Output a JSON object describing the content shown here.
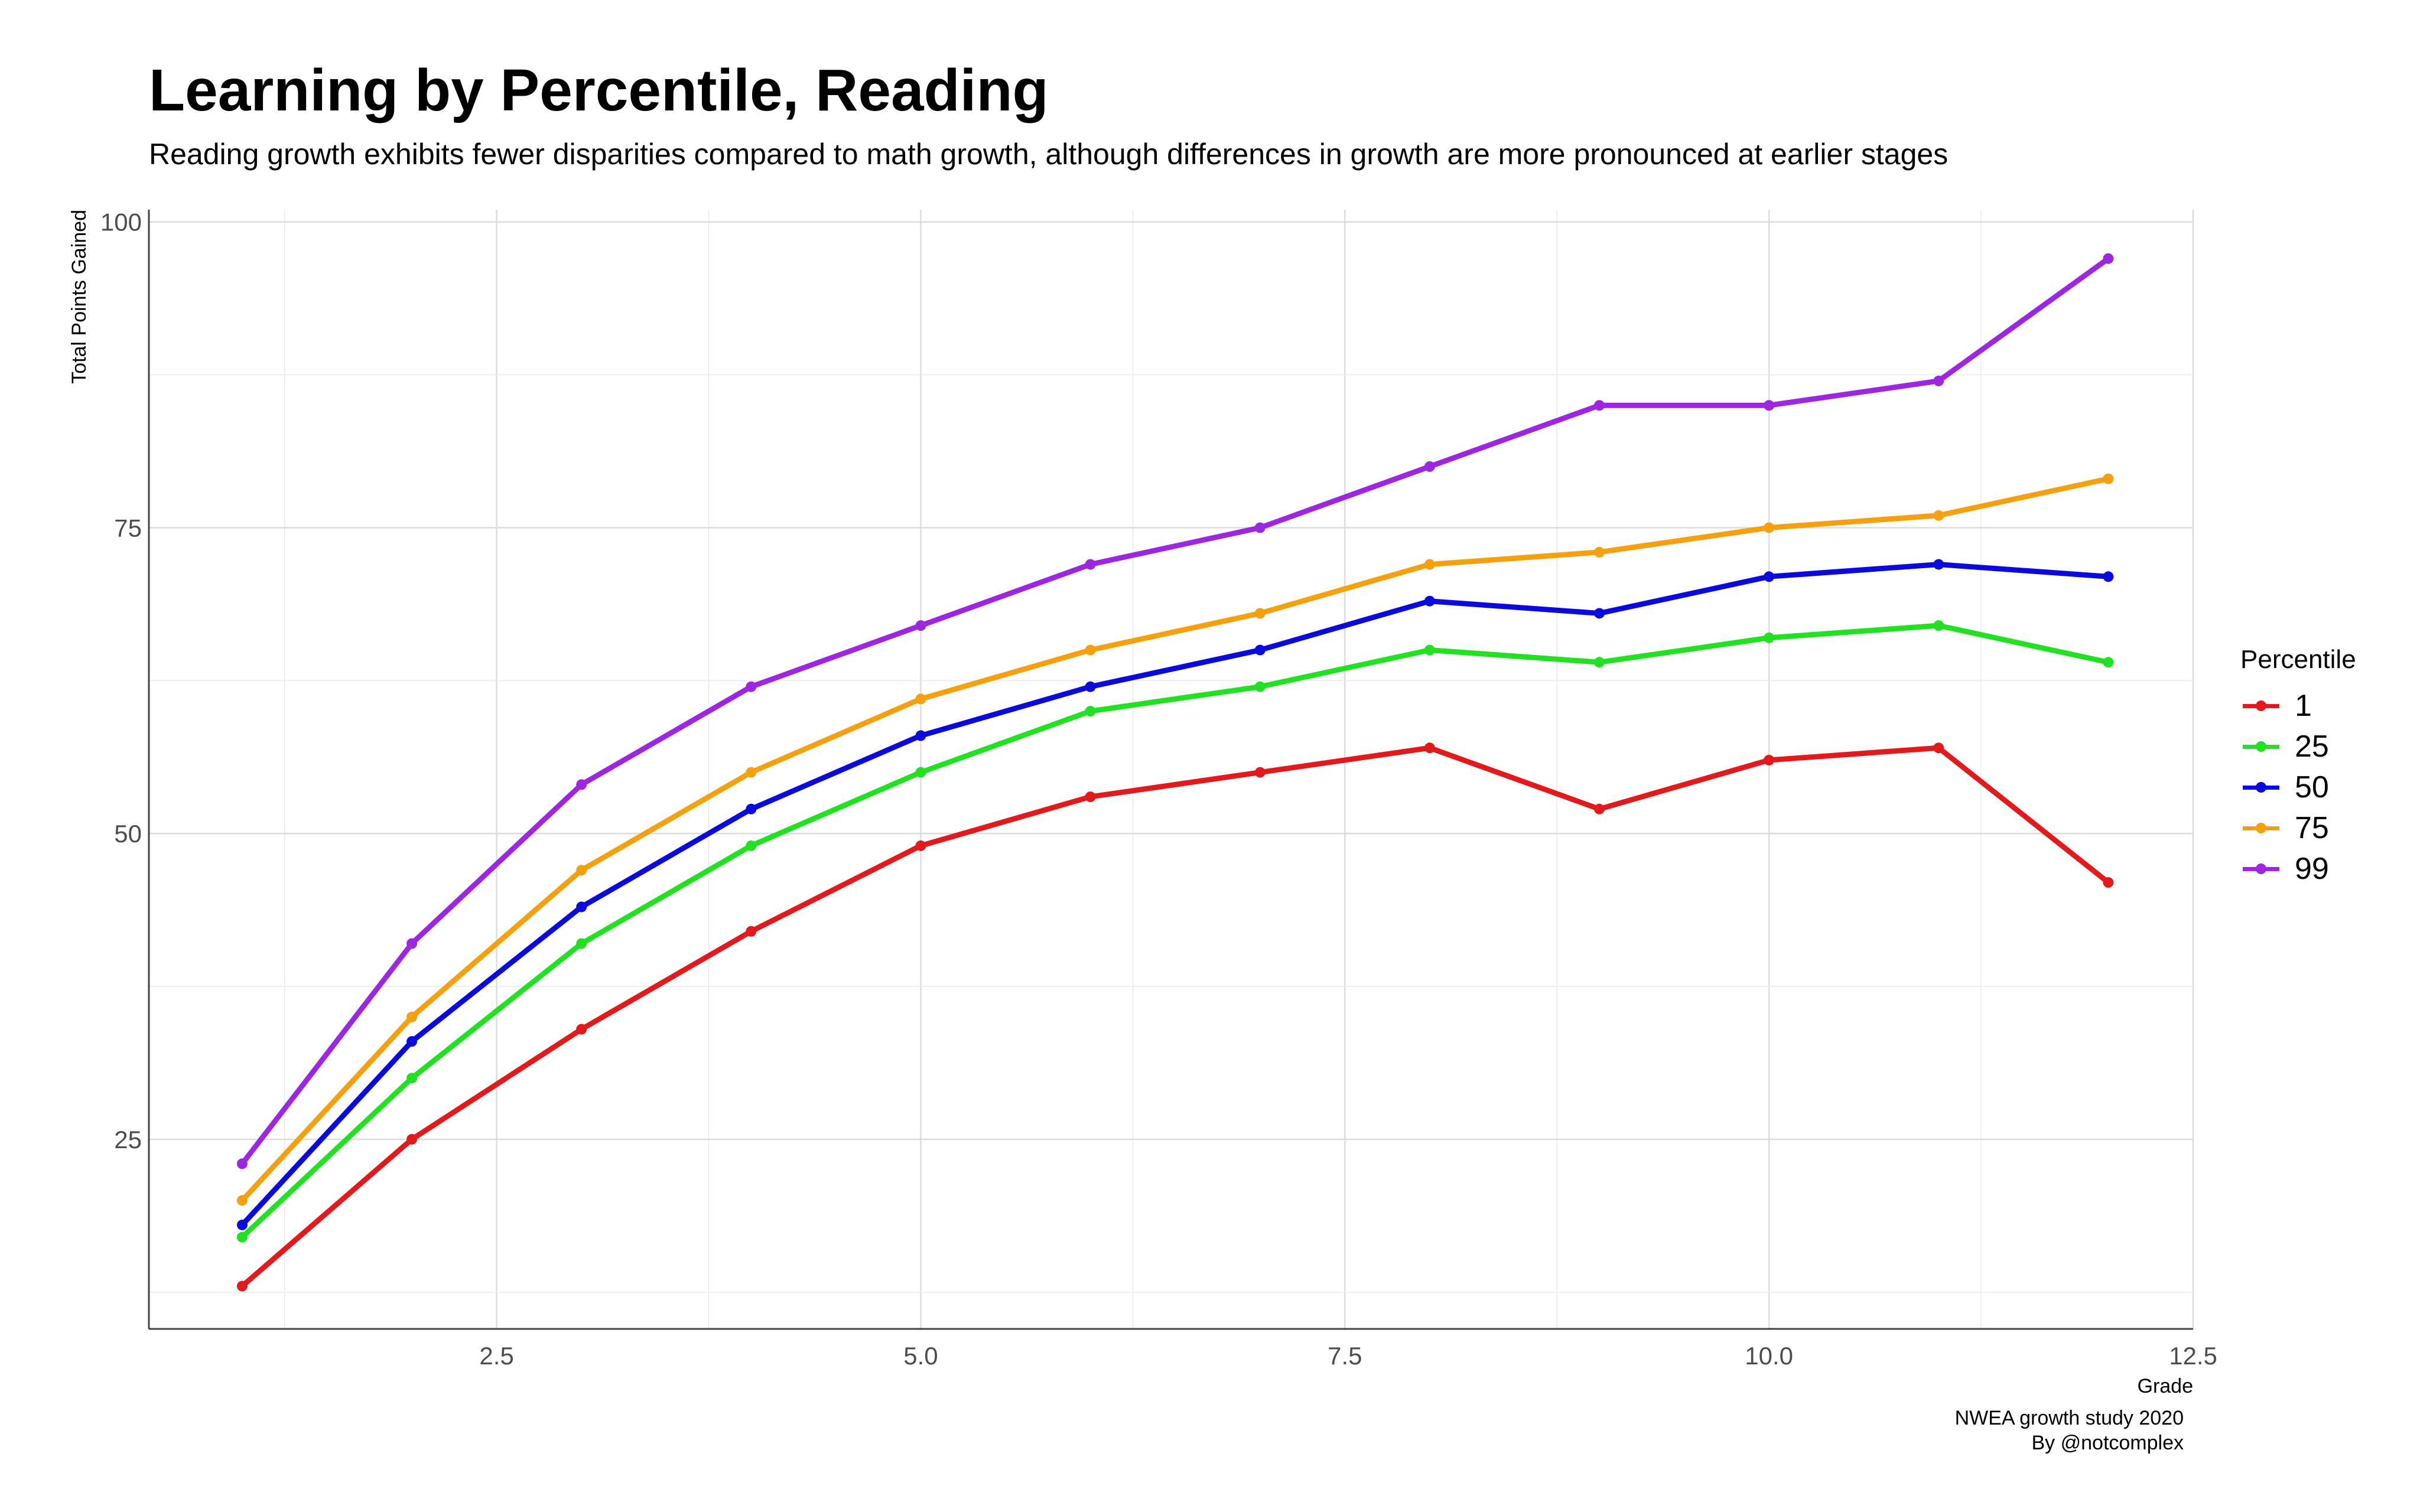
{
  "title": "Learning by Percentile, Reading",
  "subtitle": "Reading growth exhibits fewer disparities compared to math growth, although differences in growth are more pronounced at earlier stages",
  "caption": [
    "NWEA growth study 2020",
    "By @notcomplex"
  ],
  "chart_data": {
    "type": "line",
    "title": "Learning by Percentile, Reading",
    "subtitle": "Reading growth exhibits fewer disparities compared to math growth, although differences in growth are more pronounced at earlier stages",
    "xlabel": "Grade",
    "ylabel": "Total Points Gained",
    "xlim": [
      0.45,
      12.5
    ],
    "ylim": [
      9.5,
      101
    ],
    "xticks": [
      2.5,
      5.0,
      7.5,
      10.0,
      12.5
    ],
    "xtick_labels": [
      "2.5",
      "5.0",
      "7.5",
      "10.0",
      "12.5"
    ],
    "yticks": [
      25,
      50,
      75,
      100
    ],
    "ytick_labels": [
      "25",
      "50",
      "75",
      "100"
    ],
    "grid": true,
    "legend_title": "Percentile",
    "legend_position": "right",
    "x": [
      1,
      2,
      3,
      4,
      5,
      6,
      7,
      8,
      9,
      10,
      11,
      12
    ],
    "series": [
      {
        "name": "1",
        "color": "#e31a1c",
        "values": [
          13,
          25,
          34,
          42,
          49,
          53,
          55,
          57,
          52,
          56,
          57,
          46
        ]
      },
      {
        "name": "25",
        "color": "#22e022",
        "values": [
          17,
          30,
          41,
          49,
          55,
          60,
          62,
          65,
          64,
          66,
          67,
          64
        ]
      },
      {
        "name": "50",
        "color": "#0a0adc",
        "values": [
          18,
          33,
          44,
          52,
          58,
          62,
          65,
          69,
          68,
          71,
          72,
          71
        ]
      },
      {
        "name": "75",
        "color": "#f5a00f",
        "values": [
          20,
          35,
          47,
          55,
          61,
          65,
          68,
          72,
          73,
          75,
          76,
          79
        ]
      },
      {
        "name": "99",
        "color": "#9d27e0",
        "values": [
          23,
          41,
          54,
          62,
          67,
          72,
          75,
          80,
          85,
          85,
          87,
          97
        ]
      }
    ]
  }
}
